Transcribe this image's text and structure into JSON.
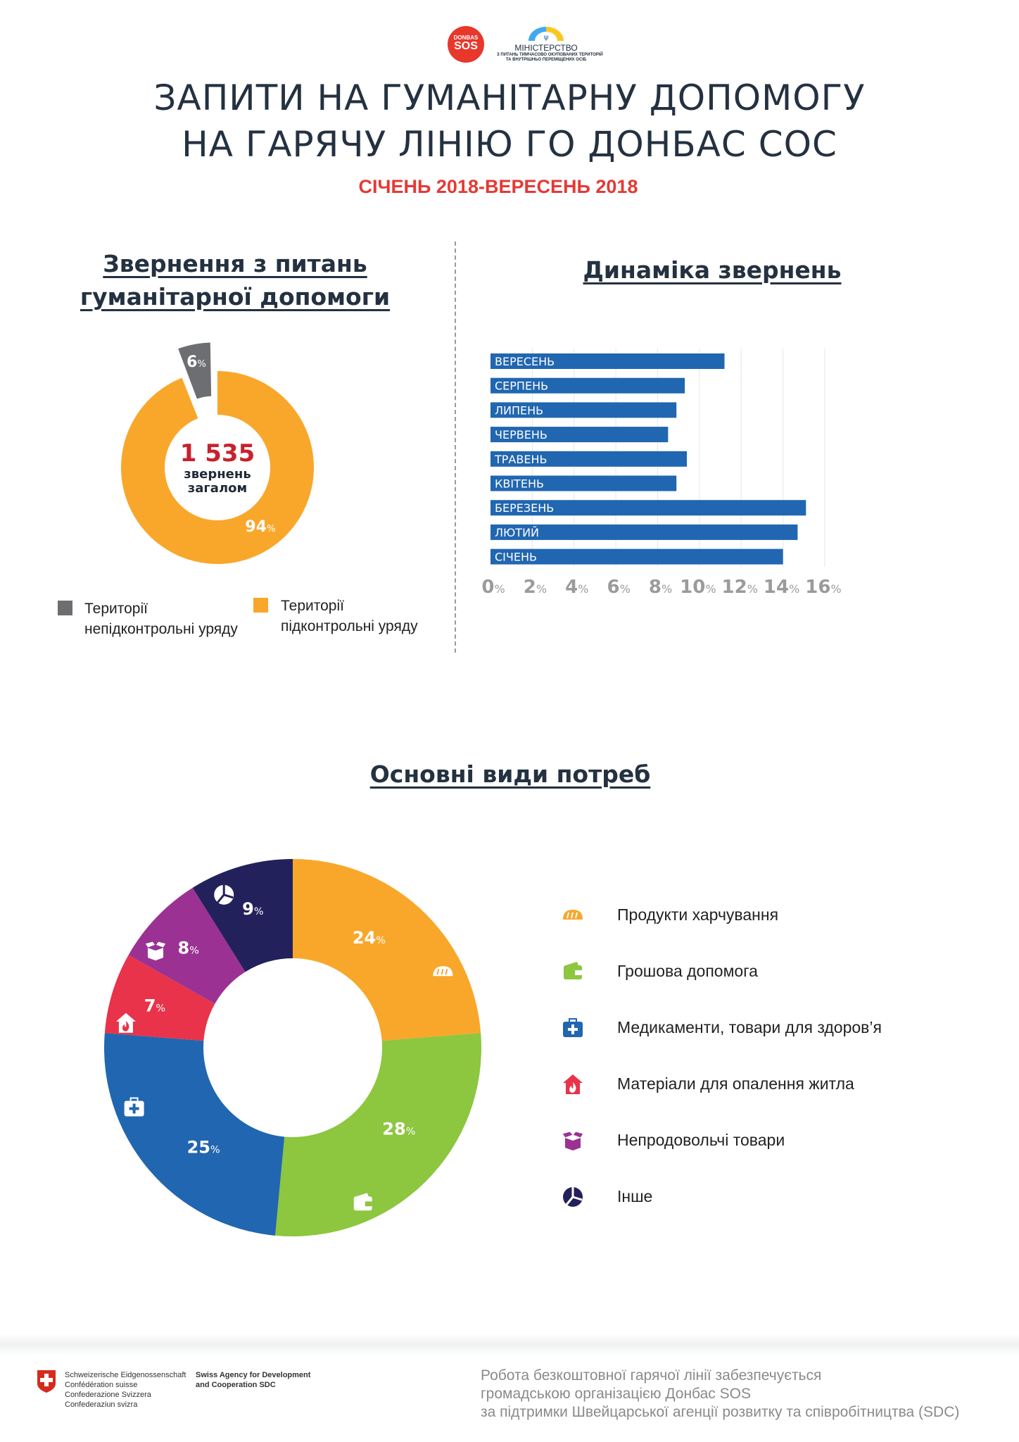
{
  "header": {
    "logo_donbas": "DONBAS",
    "logo_sos": "SOS",
    "logo_ministry": "МІНІСТЕРСТВО",
    "logo_ministry_sub1": "З ПИТАНЬ ТИМЧАСОВО ОКУПОВАНИХ ТЕРИТОРІЙ",
    "logo_ministry_sub2": "ТА ВНУТРІШНЬО ПЕРЕМІЩЕНИХ ОСІБ",
    "title_line1": "ЗАПИТИ НА ГУМАНІТАРНУ ДОПОМОГУ",
    "title_line2": "НА ГАРЯЧУ ЛІНІЮ ГО ДОНБАС СОС",
    "subtitle": "СІЧЕНЬ 2018-ВЕРЕСЕНЬ 2018",
    "colors": {
      "red": "#e53935",
      "dark": "#243140"
    }
  },
  "requests": {
    "heading_line1": "Звернення з питань",
    "heading_line2": "гуманітарної допомоги",
    "total": "1 535",
    "total_label1": "звернень",
    "total_label2": "загалом",
    "legend": [
      {
        "line1": "Території",
        "line2": "непідконтрольні уряду",
        "color": "#6d6e71"
      },
      {
        "line1": "Території",
        "line2": "підконтрольні уряду",
        "color": "#f9a72b"
      }
    ]
  },
  "dynamics": {
    "heading": "Динаміка звернень"
  },
  "needs": {
    "heading": "Основні види потреб",
    "legend": [
      {
        "label": "Продукти харчування",
        "icon": "bread-icon",
        "color": "#f9a72b"
      },
      {
        "label": "Грошова допомога",
        "icon": "wallet-icon",
        "color": "#8dc63f"
      },
      {
        "label": "Медикаменти, товари для здоров’я",
        "icon": "medkit-icon",
        "color": "#2166b0"
      },
      {
        "label": "Матеріали для опалення житла",
        "icon": "house-fire-icon",
        "color": "#e8334a"
      },
      {
        "label": "Непродовольчі товари",
        "icon": "box-icon",
        "color": "#9b3293"
      },
      {
        "label": "Інше",
        "icon": "pie-icon",
        "color": "#23215b"
      }
    ]
  },
  "footer": {
    "swiss1": "Schweizerische Eidgenossenschaft",
    "swiss2": "Confédération suisse",
    "swiss3": "Confederazione Svizzera",
    "swiss4": "Confederaziun svizra",
    "sdc1": "Swiss Agency for Development",
    "sdc2": "and Cooperation SDC",
    "note1": "Робота безкоштовної гарячої лінії забезпечується",
    "note2": "громадською організацією Донбас SOS",
    "note3": "за підтримки Швейцарської агенції розвитку та співробітництва (SDC)"
  },
  "chart_data": [
    {
      "type": "pie",
      "title": "Звернення з питань гуманітарної допомоги",
      "categories": [
        "Території непідконтрольні уряду",
        "Території підконтрольні уряду"
      ],
      "values": [
        6,
        94
      ],
      "labels": [
        "6",
        "94"
      ],
      "unit": "%",
      "colors": [
        "#6d6e71",
        "#f9a72b"
      ]
    },
    {
      "type": "bar",
      "orientation": "horizontal",
      "title": "Динаміка звернень",
      "categories": [
        "ВЕРЕСЕНЬ",
        "СЕРПЕНЬ",
        "ЛИПЕНЬ",
        "ЧЕРВЕНЬ",
        "ТРАВЕНЬ",
        "КВІТЕНЬ",
        "БЕРЕЗЕНЬ",
        "ЛЮТИЙ",
        "СІЧЕНЬ"
      ],
      "values": [
        11.2,
        9.3,
        8.9,
        8.5,
        9.4,
        8.9,
        15.1,
        14.7,
        14.0
      ],
      "xlim": [
        0,
        16
      ],
      "xticks": [
        "0",
        "2",
        "4",
        "6",
        "8",
        "10",
        "12",
        "14",
        "16"
      ],
      "tick_unit": "%",
      "grid": true,
      "color": "#2166b0"
    },
    {
      "type": "pie",
      "title": "Основні види потреб",
      "categories": [
        "Продукти харчування",
        "Грошова допомога",
        "Медикаменти, товари для здоров’я",
        "Матеріали для опалення житла",
        "Непродовольчі товари",
        "Інше"
      ],
      "values": [
        24,
        28,
        25,
        7,
        8,
        9
      ],
      "labels": [
        "24",
        "28",
        "25",
        "7",
        "8",
        "9"
      ],
      "unit": "%",
      "colors": [
        "#f9a72b",
        "#8dc63f",
        "#2166b0",
        "#e8334a",
        "#9b3293",
        "#23215b"
      ]
    }
  ]
}
